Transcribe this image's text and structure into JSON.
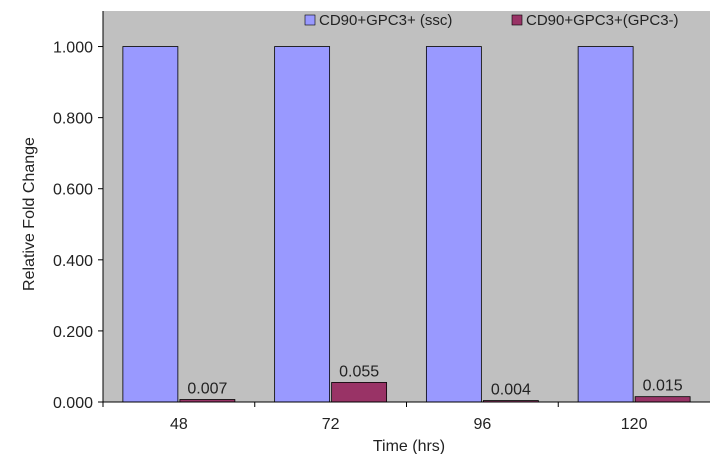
{
  "chart_data": {
    "type": "bar",
    "title": "",
    "xlabel": "Time (hrs)",
    "ylabel": "Relative Fold Change",
    "categories": [
      "48",
      "72",
      "96",
      "120"
    ],
    "series": [
      {
        "name": "CD90+GPC3+ (ssc)",
        "values": [
          1.0,
          1.0,
          1.0,
          1.0
        ],
        "color": "#9999ff"
      },
      {
        "name": "CD90+GPC3+(GPC3-)",
        "values": [
          0.007,
          0.055,
          0.004,
          0.015
        ],
        "color": "#993366"
      }
    ],
    "data_labels": {
      "series_index": 1,
      "labels": [
        "0.007",
        "0.055",
        "0.004",
        "0.015"
      ]
    },
    "ylim": [
      0,
      1.1
    ],
    "yticks": [
      "0.000",
      "0.200",
      "0.400",
      "0.600",
      "0.800",
      "1.000"
    ],
    "ytick_values": [
      0,
      0.2,
      0.4,
      0.6,
      0.8,
      1.0
    ],
    "grid": false,
    "plot_background": "#c0c0c0",
    "legend_position": "top"
  }
}
